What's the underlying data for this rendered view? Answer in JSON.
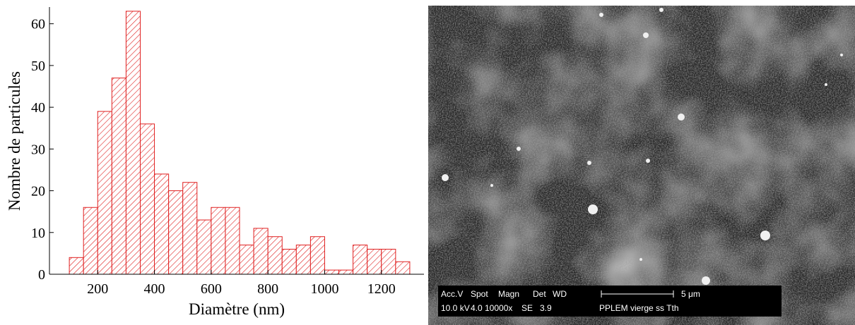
{
  "chart_data": {
    "type": "histogram",
    "x_label": "Diamètre (nm)",
    "y_label": "Nombre de particules",
    "bins": [
      100,
      150,
      200,
      250,
      300,
      350,
      400,
      450,
      500,
      550,
      600,
      650,
      700,
      750,
      800,
      850,
      900,
      950,
      1000,
      1050,
      1100,
      1150,
      1200,
      1250,
      1300
    ],
    "values": [
      4,
      16,
      39,
      47,
      63,
      36,
      24,
      20,
      22,
      13,
      16,
      16,
      7,
      11,
      9,
      6,
      7,
      9,
      1,
      1,
      7,
      6,
      6,
      3
    ],
    "color": "#e02020",
    "xlim": [
      30,
      1350
    ],
    "xticks": [
      200,
      400,
      600,
      800,
      1000,
      1200
    ],
    "ylim": [
      0,
      64
    ],
    "yticks": [
      0,
      10,
      20,
      30,
      40,
      50,
      60
    ]
  },
  "image": {
    "labels": [
      "Acc.V",
      "Spot",
      "Magn",
      "Det",
      "WD"
    ],
    "settings": [
      "10.0 kV",
      "4.0",
      "10000x",
      "SE",
      "3.9"
    ],
    "scale": "5 μm",
    "sample": "PPLEM vierge ss Tth"
  }
}
